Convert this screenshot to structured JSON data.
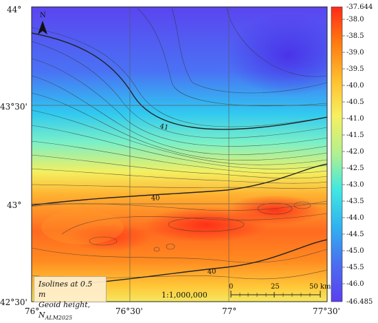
{
  "map": {
    "lat_labels": [
      "44°",
      "43°30'",
      "43°",
      "42°30'"
    ],
    "lon_labels": [
      "76°",
      "76°30'",
      "77°",
      "77°30'"
    ],
    "north_label": "N",
    "contour_labels": [
      "41",
      "40",
      "40"
    ],
    "legend": {
      "line1": "Isolines at 0.5 m",
      "line2_prefix": "Geoid height, N",
      "line2_sub": "ALM2025"
    },
    "scale_ratio": "1:1,000,000",
    "scale_bar": {
      "ticks": [
        "0",
        "25",
        "50 km"
      ]
    },
    "colorbar": {
      "max": "-37.644",
      "min": "-46.485",
      "labels": [
        "-38.0",
        "-38.5",
        "-39.0",
        "-39.5",
        "-40.0",
        "-40.5",
        "-41.0",
        "-41.5",
        "-42.0",
        "-42.5",
        "-43.0",
        "-43.5",
        "-44.0",
        "-44.5",
        "-45.0",
        "-45.5",
        "-46.0"
      ],
      "colors": [
        "#ff2a1a",
        "#ff7a10",
        "#ffc030",
        "#f6f060",
        "#b0f090",
        "#40e8e0",
        "#30b0f0",
        "#4a6ff0",
        "#5a3ff0"
      ]
    }
  }
}
